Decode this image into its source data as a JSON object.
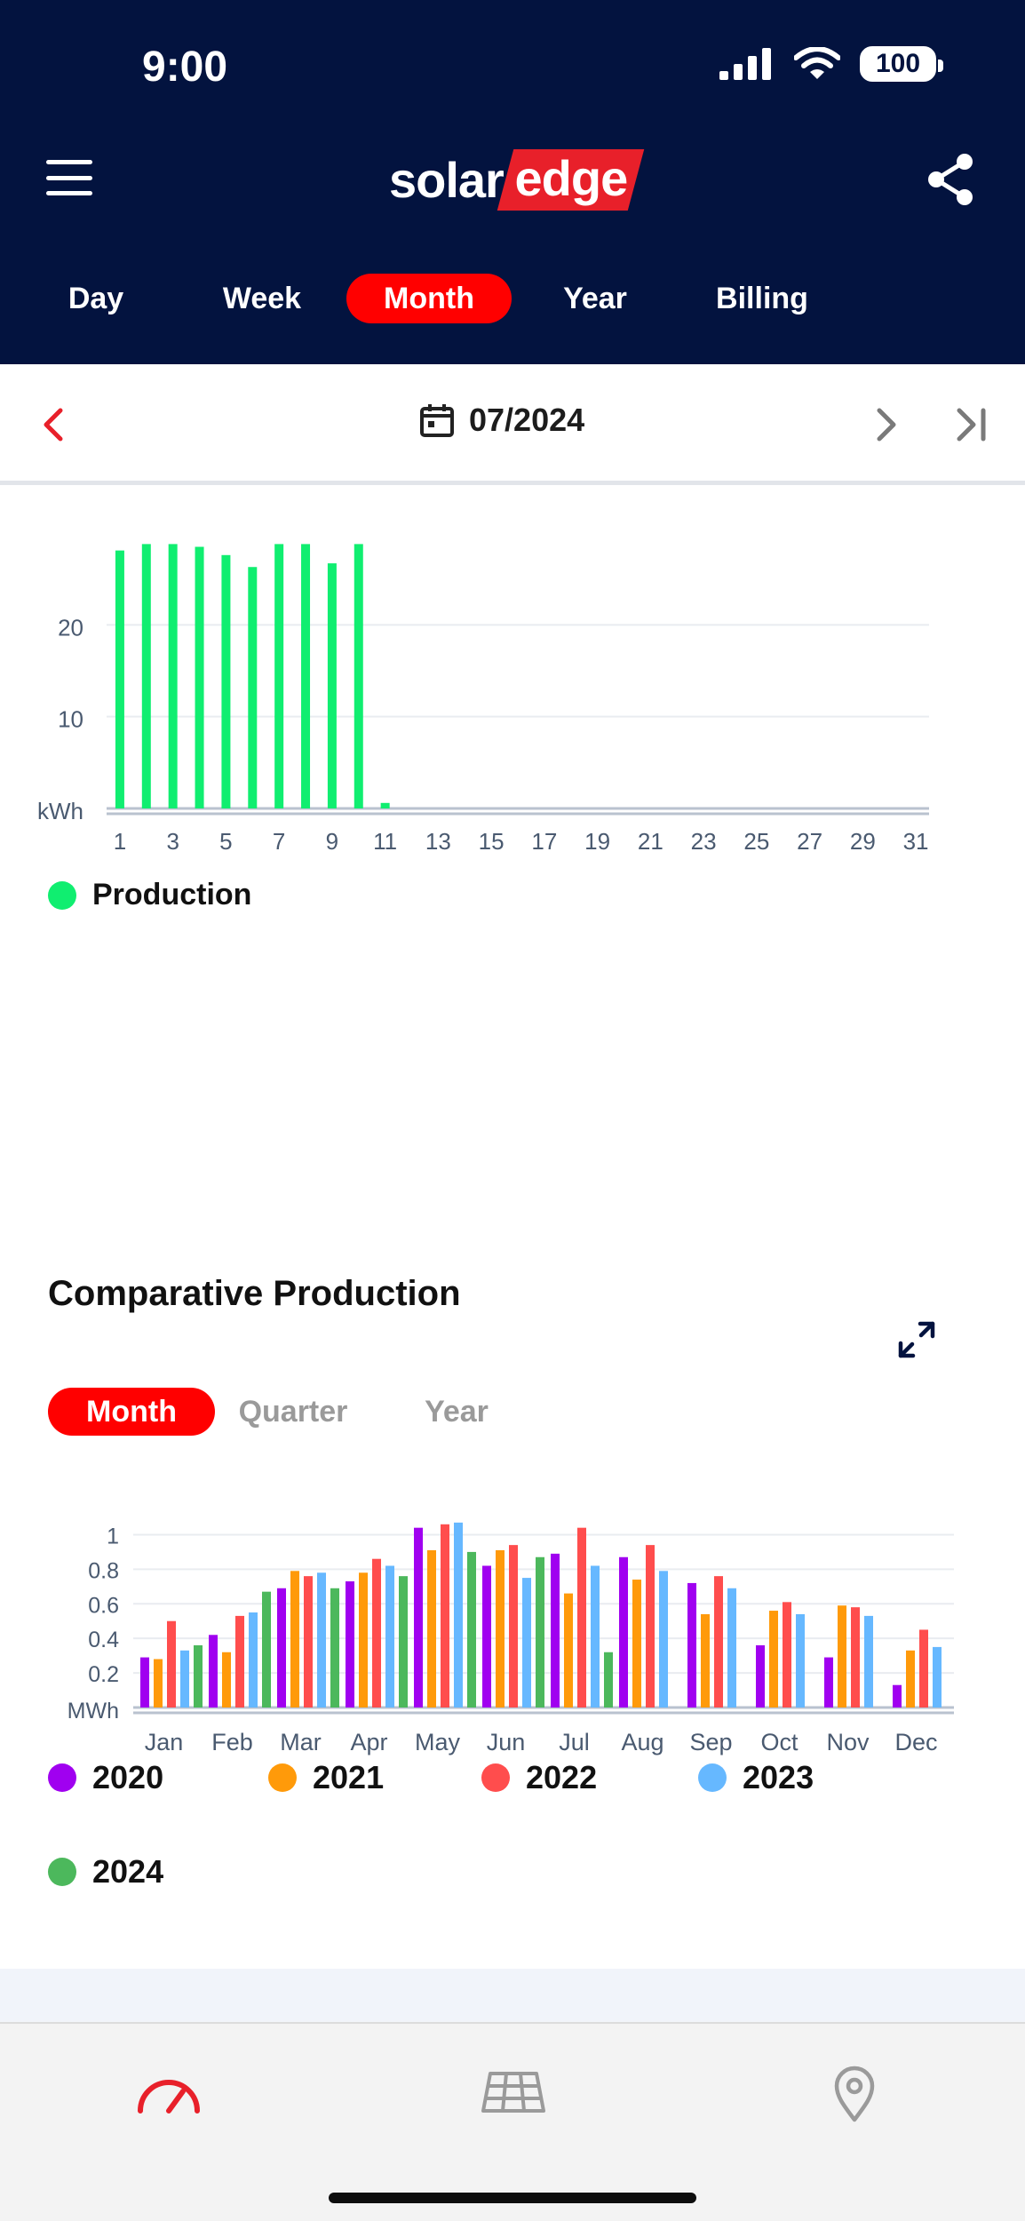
{
  "status_bar": {
    "time": "9:00",
    "battery": "100"
  },
  "header": {
    "logo_left": "solar",
    "logo_right": "edge"
  },
  "period_tabs": [
    {
      "label": "Day",
      "active": false
    },
    {
      "label": "Week",
      "active": false
    },
    {
      "label": "Month",
      "active": true
    },
    {
      "label": "Year",
      "active": false
    },
    {
      "label": "Billing",
      "active": false
    }
  ],
  "date_nav": {
    "date": "07/2024"
  },
  "colors": {
    "header_bg": "#03133f",
    "accent": "#ff0000",
    "production": "#10ee70",
    "y2020": "#a000f0",
    "y2021": "#ff9a0a",
    "y2022": "#ff4d4d",
    "y2023": "#66b8ff",
    "y2024": "#4cb85c"
  },
  "production_legend": "Production",
  "comparative": {
    "title": "Comparative Production",
    "tabs": [
      {
        "label": "Month",
        "active": true
      },
      {
        "label": "Quarter",
        "active": false
      },
      {
        "label": "Year",
        "active": false
      }
    ]
  },
  "chart_data": [
    {
      "type": "bar",
      "unit_label": "kWh",
      "ylim": [
        0,
        30
      ],
      "yticks": [
        10,
        20
      ],
      "x": [
        1,
        2,
        3,
        4,
        5,
        6,
        7,
        8,
        9,
        10,
        11,
        12,
        13,
        14,
        15,
        16,
        17,
        18,
        19,
        20,
        21,
        22,
        23,
        24,
        25,
        26,
        27,
        28,
        29,
        30,
        31
      ],
      "x_tick_labels": [
        "1",
        "3",
        "5",
        "7",
        "9",
        "11",
        "13",
        "15",
        "17",
        "19",
        "21",
        "23",
        "25",
        "27",
        "29",
        "31"
      ],
      "series": [
        {
          "name": "Production",
          "values": [
            28.1,
            28.8,
            28.8,
            28.5,
            27.6,
            26.3,
            28.8,
            28.8,
            26.7,
            28.8,
            0.6,
            0,
            0,
            0,
            0,
            0,
            0,
            0,
            0,
            0,
            0,
            0,
            0,
            0,
            0,
            0,
            0,
            0,
            0,
            0,
            0
          ]
        }
      ],
      "legend": "bottom-left"
    },
    {
      "type": "bar",
      "unit_label": "MWh",
      "ylim": [
        0,
        1.1
      ],
      "yticks": [
        "0.2",
        "0.4",
        "0.6",
        "0.8",
        "1"
      ],
      "categories": [
        "Jan",
        "Feb",
        "Mar",
        "Apr",
        "May",
        "Jun",
        "Jul",
        "Aug",
        "Sep",
        "Oct",
        "Nov",
        "Dec"
      ],
      "series": [
        {
          "name": "2020",
          "values": [
            0.29,
            0.42,
            0.69,
            0.73,
            1.04,
            0.82,
            0.89,
            0.87,
            0.72,
            0.36,
            0.29,
            0.13
          ]
        },
        {
          "name": "2021",
          "values": [
            0.28,
            0.32,
            0.79,
            0.78,
            0.91,
            0.91,
            0.66,
            0.74,
            0.54,
            0.56,
            0.59,
            0.33
          ]
        },
        {
          "name": "2022",
          "values": [
            0.5,
            0.53,
            0.76,
            0.86,
            1.06,
            0.94,
            1.04,
            0.94,
            0.76,
            0.61,
            0.58,
            0.45
          ]
        },
        {
          "name": "2023",
          "values": [
            0.33,
            0.55,
            0.78,
            0.82,
            1.07,
            0.75,
            0.82,
            0.79,
            0.69,
            0.54,
            0.53,
            0.35
          ]
        },
        {
          "name": "2024",
          "values": [
            0.36,
            0.67,
            0.69,
            0.76,
            0.9,
            0.87,
            0.32,
            null,
            null,
            null,
            null,
            null
          ]
        }
      ],
      "legend": "bottom"
    }
  ]
}
